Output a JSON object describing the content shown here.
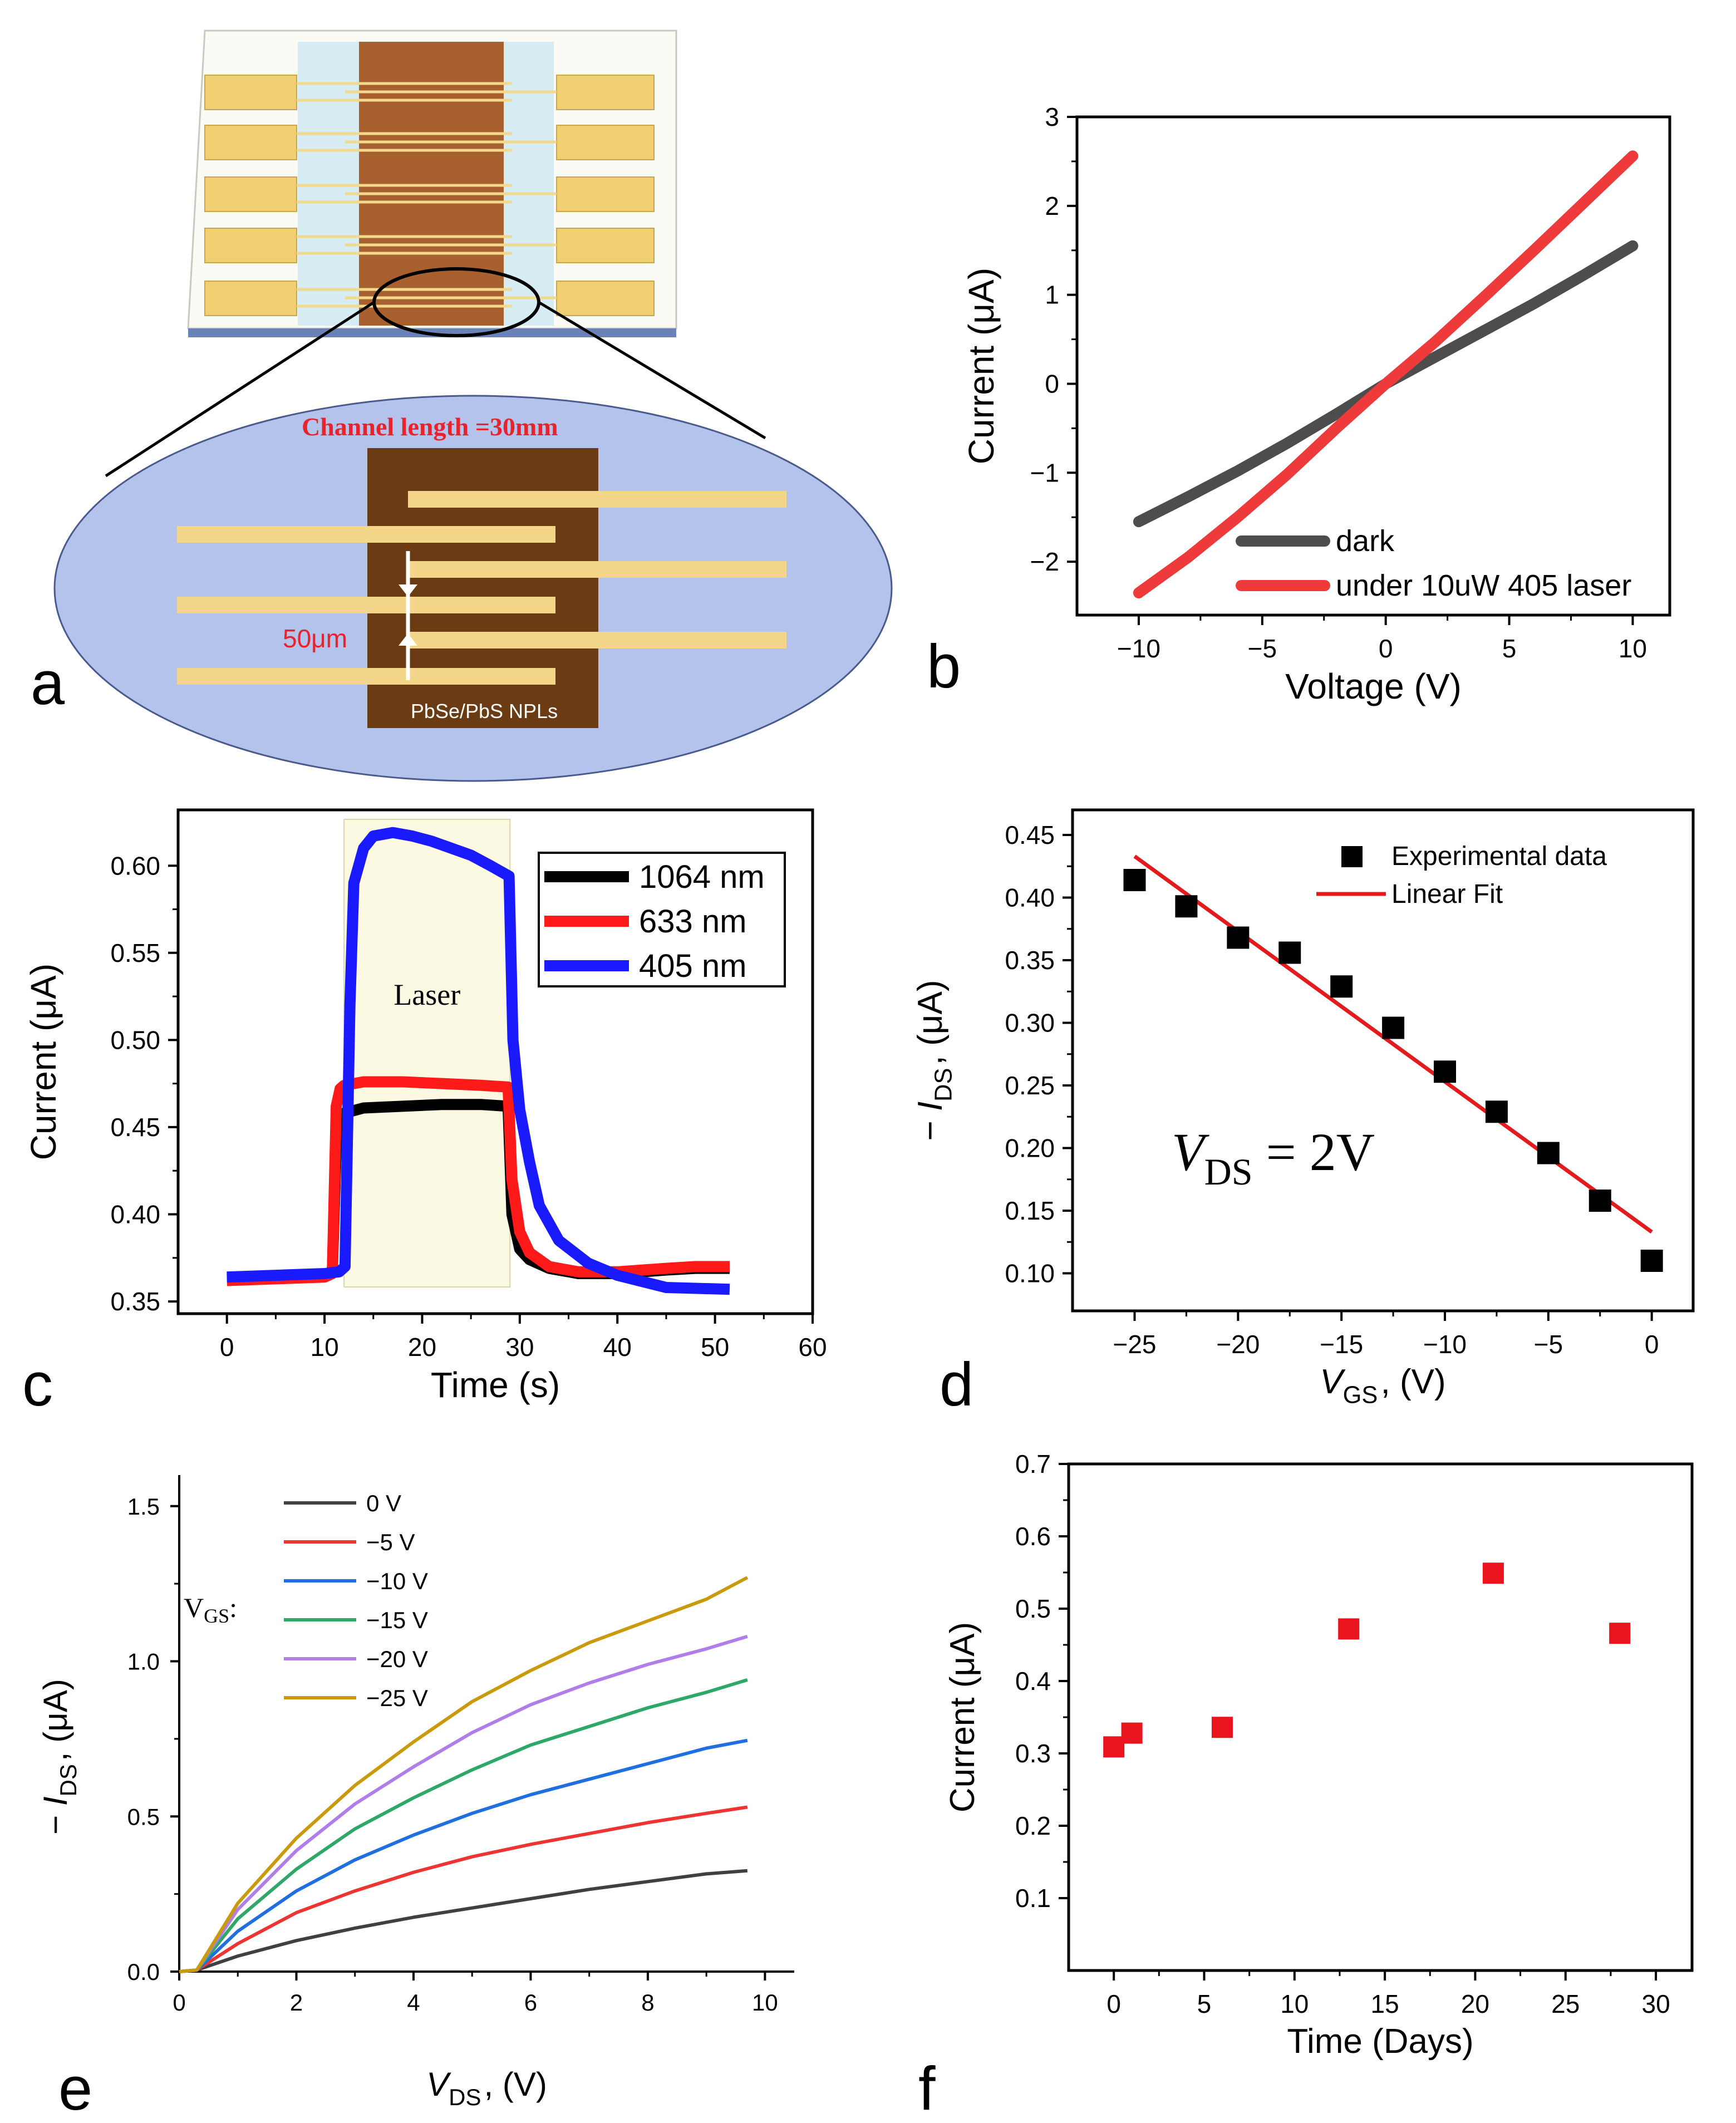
{
  "panel_letters": {
    "a": "a",
    "b": "b",
    "c": "c",
    "d": "d",
    "e": "e",
    "f": "f"
  },
  "device": {
    "channel_length": "Channel length =30mm",
    "gap_label": "50μm",
    "material_label": "PbSe/PbS NPLs"
  },
  "chart_data": [
    {
      "id": "b",
      "type": "line",
      "title": "",
      "xlabel": "Voltage (V)",
      "ylabel": "Current (μA)",
      "xlim": [
        -12.5,
        11.5
      ],
      "ylim": [
        -2.6,
        3
      ],
      "xticks": [
        -10,
        -5,
        0,
        5,
        10
      ],
      "xtick_labels": [
        "−10",
        "−5",
        "0",
        "5",
        "10"
      ],
      "yticks": [
        -2,
        -1,
        0,
        1,
        2,
        3
      ],
      "ytick_labels": [
        "−2",
        "−1",
        "0",
        "1",
        "2",
        "3"
      ],
      "legend": "bottom-right",
      "series": [
        {
          "name": "dark",
          "color": "#4d4d4d",
          "x": [
            -10,
            -8,
            -6,
            -4,
            -2,
            0,
            2,
            4,
            6,
            8,
            10
          ],
          "y": [
            -1.55,
            -1.27,
            -0.98,
            -0.67,
            -0.34,
            0.0,
            0.3,
            0.6,
            0.9,
            1.22,
            1.55
          ]
        },
        {
          "name": "under 10uW 405 laser",
          "color": "#ee3a3a",
          "x": [
            -10,
            -8,
            -6,
            -4,
            -2,
            0,
            2,
            4,
            6,
            8,
            10
          ],
          "y": [
            -2.35,
            -1.95,
            -1.5,
            -1.02,
            -0.5,
            0.0,
            0.47,
            0.98,
            1.5,
            2.03,
            2.56
          ]
        }
      ]
    },
    {
      "id": "c",
      "type": "line",
      "title": "",
      "xlabel": "Time (s)",
      "ylabel": "Current (μA)",
      "xlim": [
        -5,
        60
      ],
      "ylim": [
        0.343,
        0.632
      ],
      "xticks": [
        0,
        10,
        20,
        30,
        40,
        50,
        60
      ],
      "xtick_labels": [
        "0",
        "10",
        "20",
        "30",
        "40",
        "50",
        "60"
      ],
      "yticks": [
        0.35,
        0.4,
        0.45,
        0.5,
        0.55,
        0.6
      ],
      "ytick_labels": [
        "0.35",
        "0.40",
        "0.45",
        "0.50",
        "0.55",
        "0.60"
      ],
      "annotation": "Laser",
      "laser_window": [
        12,
        29
      ],
      "legend": "top-right",
      "series": [
        {
          "name": "1064 nm",
          "color": "#000000",
          "x": [
            0,
            5,
            10,
            10.8,
            11.2,
            11.6,
            12,
            14,
            18,
            22,
            26,
            28.8,
            29.2,
            30,
            31,
            33,
            36,
            40,
            45,
            48,
            51.5
          ],
          "y": [
            0.363,
            0.364,
            0.365,
            0.367,
            0.44,
            0.455,
            0.458,
            0.461,
            0.462,
            0.463,
            0.463,
            0.462,
            0.4,
            0.38,
            0.374,
            0.369,
            0.366,
            0.366,
            0.368,
            0.369,
            0.369
          ]
        },
        {
          "name": "633 nm",
          "color": "#ff1a1a",
          "x": [
            0,
            5,
            10,
            10.8,
            11.2,
            11.6,
            12,
            14,
            18,
            22,
            26,
            28.8,
            29.2,
            30,
            31,
            33,
            36,
            40,
            45,
            48,
            51.5
          ],
          "y": [
            0.362,
            0.363,
            0.364,
            0.366,
            0.462,
            0.472,
            0.474,
            0.476,
            0.476,
            0.475,
            0.474,
            0.473,
            0.42,
            0.39,
            0.378,
            0.37,
            0.367,
            0.367,
            0.369,
            0.37,
            0.37
          ]
        },
        {
          "name": "405 nm",
          "color": "#1a1aff",
          "x": [
            0,
            5,
            10,
            11.5,
            12.1,
            12.6,
            13,
            14,
            15,
            17,
            19,
            21,
            23,
            25,
            27,
            28.9,
            29.3,
            30,
            31,
            32,
            34,
            37,
            40,
            45,
            51.5
          ],
          "y": [
            0.364,
            0.365,
            0.366,
            0.367,
            0.37,
            0.52,
            0.59,
            0.61,
            0.617,
            0.619,
            0.617,
            0.614,
            0.61,
            0.606,
            0.6,
            0.594,
            0.5,
            0.46,
            0.43,
            0.405,
            0.385,
            0.372,
            0.365,
            0.358,
            0.357
          ]
        }
      ]
    },
    {
      "id": "d",
      "type": "scatter",
      "title": "",
      "xlabel": "V_GS, (V)",
      "ylabel": "− I_DS, (μA)",
      "xlim": [
        -28,
        2
      ],
      "ylim": [
        0.07,
        0.47
      ],
      "xticks": [
        -25,
        -20,
        -15,
        -10,
        -5,
        0
      ],
      "xtick_labels": [
        "−25",
        "−20",
        "−15",
        "−10",
        "−5",
        "0"
      ],
      "yticks": [
        0.1,
        0.15,
        0.2,
        0.25,
        0.3,
        0.35,
        0.4,
        0.45
      ],
      "ytick_labels": [
        "0.10",
        "0.15",
        "0.20",
        "0.25",
        "0.30",
        "0.35",
        "0.40",
        "0.45"
      ],
      "annotation": "V_DS = 2V",
      "legend": "top-right",
      "series": [
        {
          "name": "Experimental data",
          "color": "#000000",
          "x": [
            -25,
            -22.5,
            -20,
            -17.5,
            -15,
            -12.5,
            -10,
            -7.5,
            -5,
            -2.5,
            0
          ],
          "y": [
            0.414,
            0.393,
            0.368,
            0.356,
            0.329,
            0.296,
            0.261,
            0.229,
            0.196,
            0.158,
            0.11
          ]
        },
        {
          "name": "Linear Fit",
          "color": "#e41a1c",
          "x": [
            -25,
            0
          ],
          "y": [
            0.433,
            0.133
          ]
        }
      ]
    },
    {
      "id": "e",
      "type": "line",
      "title": "",
      "xlabel": "V_DS, (V)",
      "ylabel": "− I_DS, (μA)",
      "xlim": [
        0,
        10.5
      ],
      "ylim": [
        0,
        1.6
      ],
      "xticks": [
        0,
        2,
        4,
        6,
        8,
        10
      ],
      "xtick_labels": [
        "0",
        "2",
        "4",
        "6",
        "8",
        "10"
      ],
      "yticks": [
        0.0,
        0.5,
        1.0,
        1.5
      ],
      "ytick_labels": [
        "0.0",
        "0.5",
        "1.0",
        "1.5"
      ],
      "legend_title": "V_GS:",
      "legend": "top-left",
      "series": [
        {
          "name": "0 V",
          "color": "#404040",
          "x": [
            0,
            0.3,
            1,
            2,
            3,
            4,
            5,
            6,
            7,
            8,
            9,
            9.7
          ],
          "y": [
            0,
            0.005,
            0.05,
            0.1,
            0.14,
            0.175,
            0.205,
            0.235,
            0.265,
            0.29,
            0.315,
            0.325
          ]
        },
        {
          "name": "−5 V",
          "color": "#ee3333",
          "x": [
            0,
            0.3,
            1,
            2,
            3,
            4,
            5,
            6,
            7,
            8,
            9,
            9.7
          ],
          "y": [
            0,
            0.005,
            0.09,
            0.19,
            0.26,
            0.32,
            0.37,
            0.41,
            0.445,
            0.48,
            0.51,
            0.53
          ]
        },
        {
          "name": "−10 V",
          "color": "#1f6fe0",
          "x": [
            0,
            0.3,
            1,
            2,
            3,
            4,
            5,
            6,
            7,
            8,
            9,
            9.7
          ],
          "y": [
            0,
            0.005,
            0.13,
            0.26,
            0.36,
            0.44,
            0.51,
            0.57,
            0.62,
            0.67,
            0.72,
            0.745
          ]
        },
        {
          "name": "−15 V",
          "color": "#2ea868",
          "x": [
            0,
            0.3,
            1,
            2,
            3,
            4,
            5,
            6,
            7,
            8,
            9,
            9.7
          ],
          "y": [
            0,
            0.005,
            0.17,
            0.33,
            0.46,
            0.56,
            0.65,
            0.73,
            0.79,
            0.85,
            0.9,
            0.94
          ]
        },
        {
          "name": "−20 V",
          "color": "#b07ee8",
          "x": [
            0,
            0.3,
            1,
            2,
            3,
            4,
            5,
            6,
            7,
            8,
            9,
            9.7
          ],
          "y": [
            0,
            0.005,
            0.2,
            0.39,
            0.54,
            0.66,
            0.77,
            0.86,
            0.93,
            0.99,
            1.04,
            1.08
          ]
        },
        {
          "name": "−25 V",
          "color": "#c99a0c",
          "x": [
            0,
            0.3,
            1,
            2,
            3,
            4,
            5,
            6,
            7,
            8,
            9,
            9.7
          ],
          "y": [
            0,
            0.005,
            0.22,
            0.43,
            0.6,
            0.74,
            0.87,
            0.97,
            1.06,
            1.13,
            1.2,
            1.27
          ]
        }
      ]
    },
    {
      "id": "f",
      "type": "scatter",
      "title": "",
      "xlabel": "Time (Days)",
      "ylabel": "Current (μA)",
      "xlim": [
        -2.5,
        32
      ],
      "ylim": [
        0,
        0.7
      ],
      "xticks": [
        0,
        5,
        10,
        15,
        20,
        25,
        30
      ],
      "xtick_labels": [
        "0",
        "5",
        "10",
        "15",
        "20",
        "25",
        "30"
      ],
      "yticks": [
        0.1,
        0.2,
        0.3,
        0.4,
        0.5,
        0.6,
        0.7
      ],
      "ytick_labels": [
        "0.1",
        "0.2",
        "0.3",
        "0.4",
        "0.5",
        "0.6",
        "0.7"
      ],
      "series": [
        {
          "name": "Current",
          "color": "#e8141e",
          "x": [
            0,
            1,
            6,
            13,
            21,
            28
          ],
          "y": [
            0.309,
            0.328,
            0.336,
            0.472,
            0.549,
            0.466
          ]
        }
      ]
    }
  ]
}
